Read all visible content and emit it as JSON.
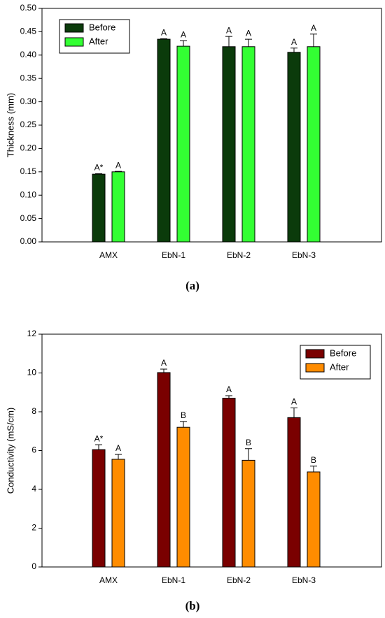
{
  "chart_data": [
    {
      "type": "bar",
      "ylabel": "Thickness (mm)",
      "caption": "(a)",
      "categories": [
        "AMX",
        "EbN-1",
        "EbN-2",
        "EbN-3"
      ],
      "series": [
        {
          "name": "Before",
          "color": "#0b3b0b",
          "values": [
            0.145,
            0.434,
            0.418,
            0.406
          ],
          "errors": [
            0.001,
            0.001,
            0.022,
            0.009
          ],
          "labels": [
            "A*",
            "A",
            "A",
            "A"
          ]
        },
        {
          "name": "After",
          "color": "#33ff33",
          "values": [
            0.15,
            0.419,
            0.418,
            0.418
          ],
          "errors": [
            0.001,
            0.012,
            0.016,
            0.027
          ],
          "labels": [
            "A",
            "A",
            "A",
            "A"
          ]
        }
      ],
      "ylim": [
        0,
        0.5
      ],
      "yticks": [
        {
          "value": 0,
          "label": "0.00"
        },
        {
          "value": 0.05,
          "label": "0.05"
        },
        {
          "value": 0.1,
          "label": "0.10"
        },
        {
          "value": 0.15,
          "label": "0.15"
        },
        {
          "value": 0.2,
          "label": "0.20"
        },
        {
          "value": 0.25,
          "label": "0.25"
        },
        {
          "value": 0.3,
          "label": "0.30"
        },
        {
          "value": 0.35,
          "label": "0.35"
        },
        {
          "value": 0.4,
          "label": "0.40"
        },
        {
          "value": 0.45,
          "label": "0.45"
        },
        {
          "value": 0.5,
          "label": "0.50"
        }
      ],
      "legend": "top-left"
    },
    {
      "type": "bar",
      "ylabel": "Conductivity (mS/cm)",
      "caption": "(b)",
      "categories": [
        "AMX",
        "EbN-1",
        "EbN-2",
        "EbN-3"
      ],
      "series": [
        {
          "name": "Before",
          "color": "#7a0000",
          "values": [
            6.05,
            10.02,
            8.7,
            7.7
          ],
          "errors": [
            0.25,
            0.18,
            0.13,
            0.5
          ],
          "labels": [
            "A*",
            "A",
            "A",
            "A"
          ]
        },
        {
          "name": "After",
          "color": "#ff8c00",
          "values": [
            5.55,
            7.2,
            5.5,
            4.9
          ],
          "errors": [
            0.25,
            0.3,
            0.6,
            0.3
          ],
          "labels": [
            "A",
            "B",
            "B",
            "B"
          ]
        }
      ],
      "ylim": [
        0,
        12
      ],
      "yticks": [
        0,
        2,
        4,
        6,
        8,
        10,
        12
      ],
      "legend": "top-right"
    }
  ]
}
